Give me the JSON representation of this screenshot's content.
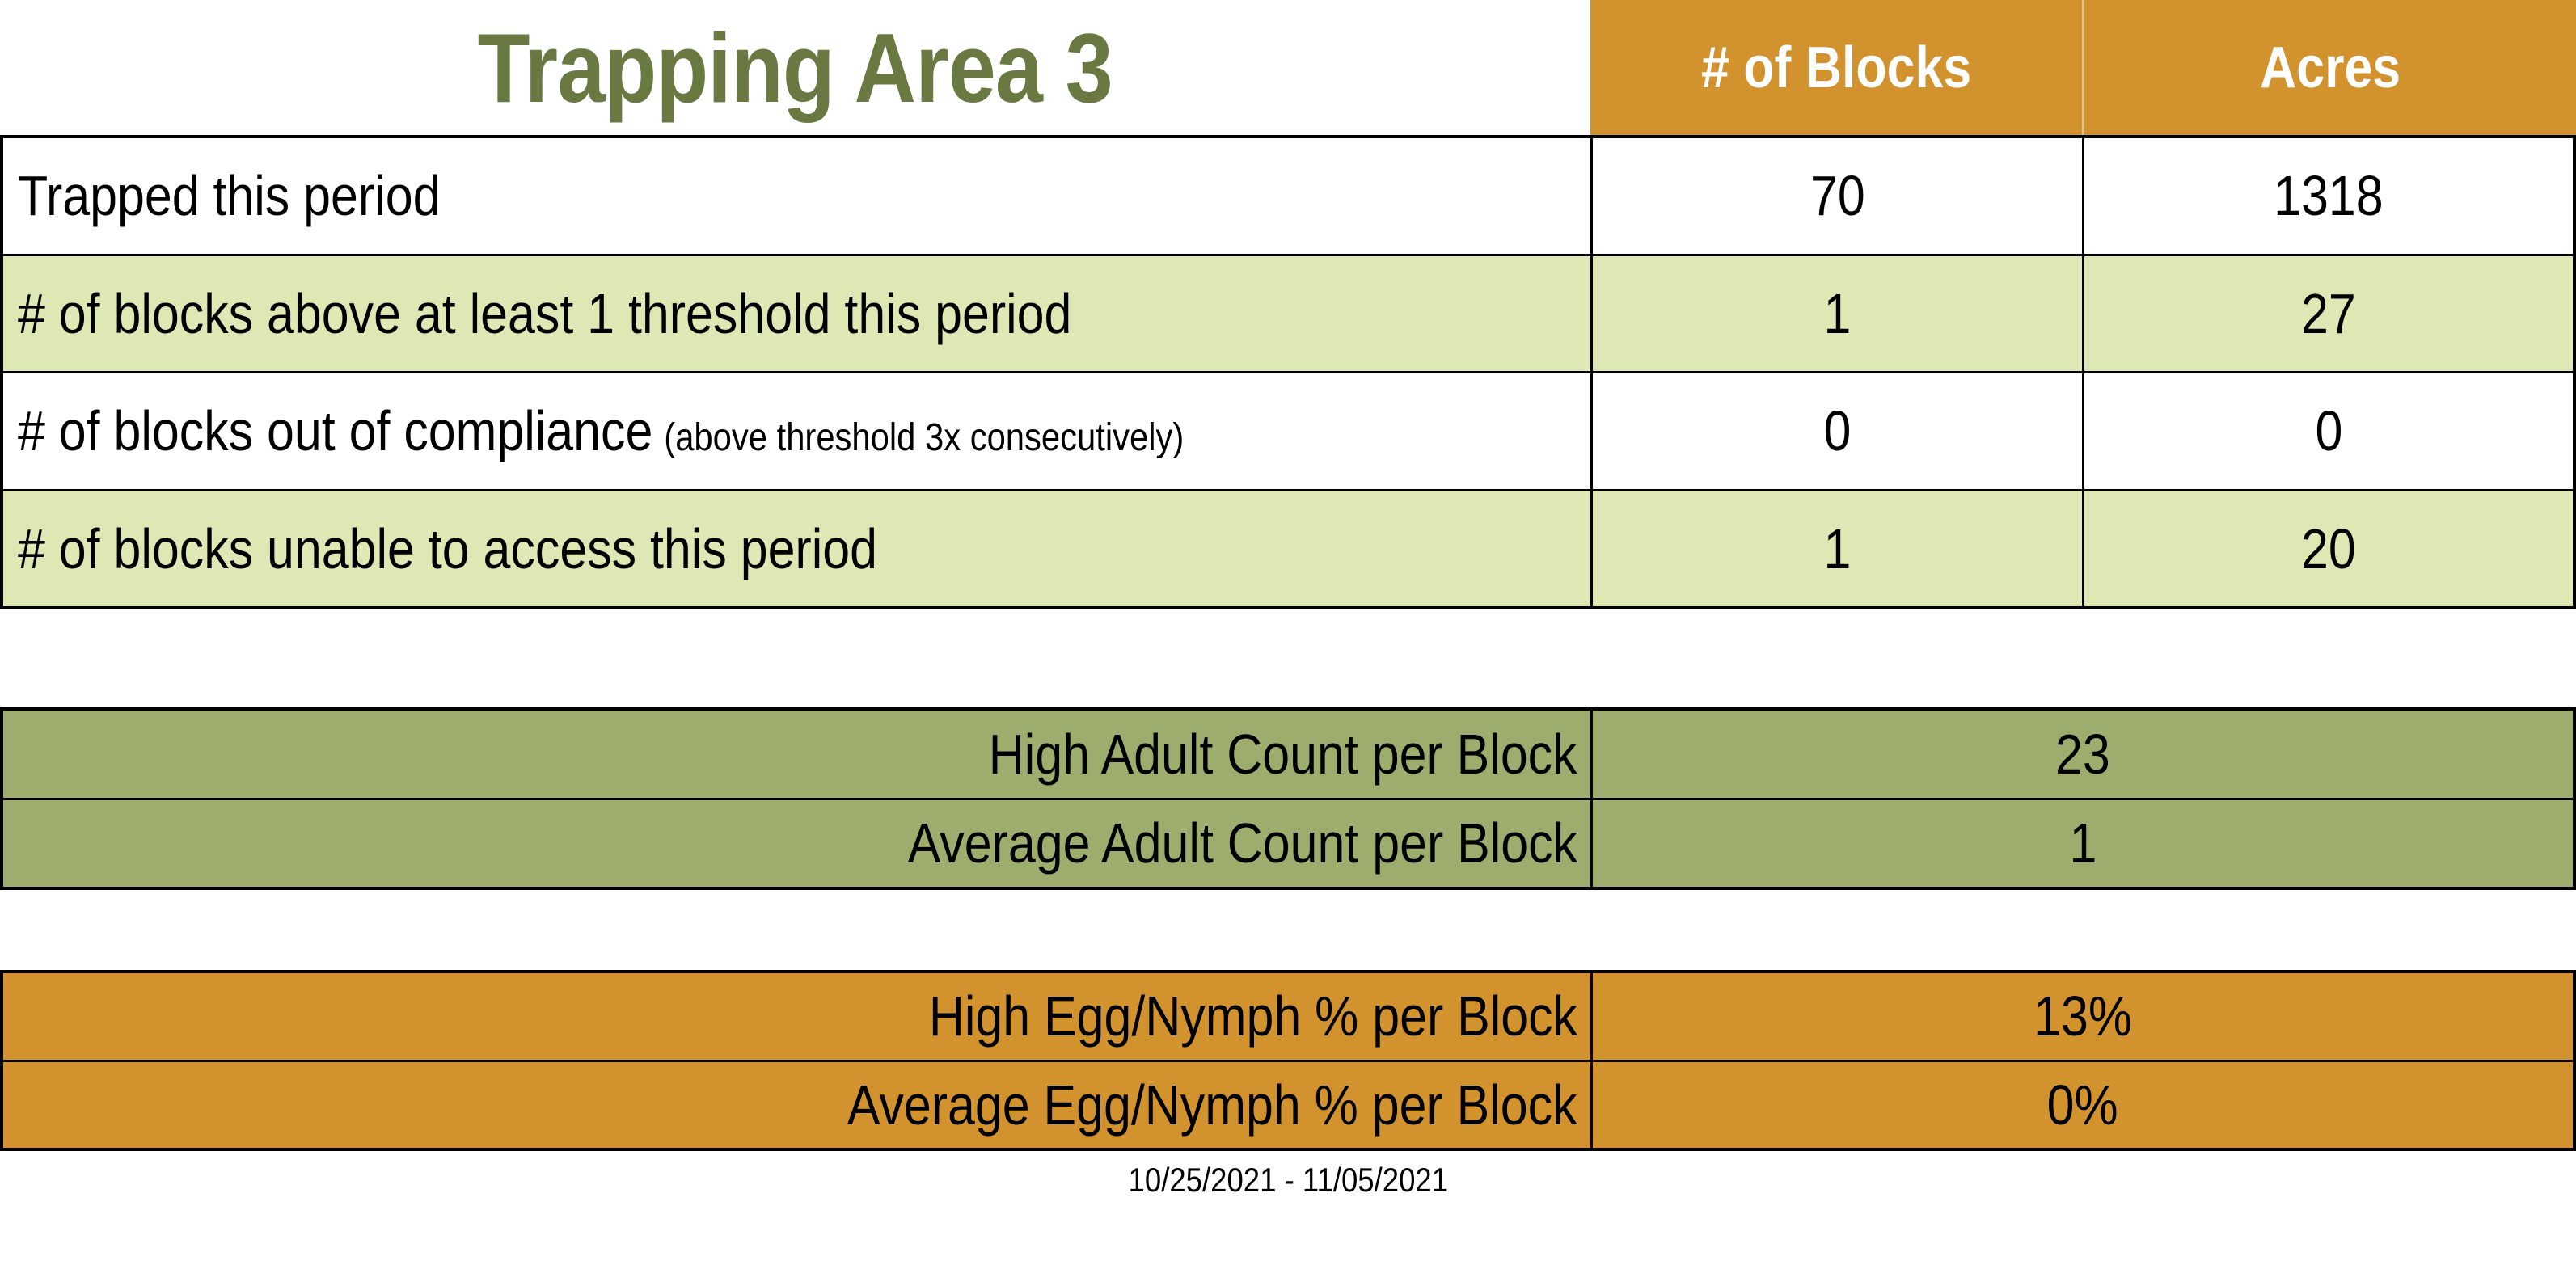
{
  "page": {
    "title": "Trapping Area 3",
    "date_range": "10/25/2021 - 11/05/2021"
  },
  "colors": {
    "title_green": "#6a7942",
    "header_orange": "#d2932f",
    "row_light_green": "#dde8b4",
    "adult_section_olive": "#9dad6d",
    "egg_section_orange": "#d2932f"
  },
  "main_table": {
    "headers": {
      "blocks": "# of Blocks",
      "acres": "Acres"
    },
    "rows": [
      {
        "label": "Trapped this period",
        "note": "",
        "blocks": "70",
        "acres": "1318"
      },
      {
        "label": "# of blocks above at least 1 threshold this period",
        "note": "",
        "blocks": "1",
        "acres": "27"
      },
      {
        "label": "# of blocks out of compliance",
        "note": "(above threshold 3x consecutively)",
        "blocks": "0",
        "acres": "0"
      },
      {
        "label": "# of blocks unable to access this period",
        "note": "",
        "blocks": "1",
        "acres": "20"
      }
    ]
  },
  "adult_counts": {
    "rows": [
      {
        "label": "High Adult Count per Block",
        "value": "23"
      },
      {
        "label": "Average Adult Count per Block",
        "value": "1"
      }
    ]
  },
  "egg_nymph": {
    "rows": [
      {
        "label": "High Egg/Nymph % per Block",
        "value": "13%"
      },
      {
        "label": "Average Egg/Nymph % per Block",
        "value": "0%"
      }
    ]
  }
}
